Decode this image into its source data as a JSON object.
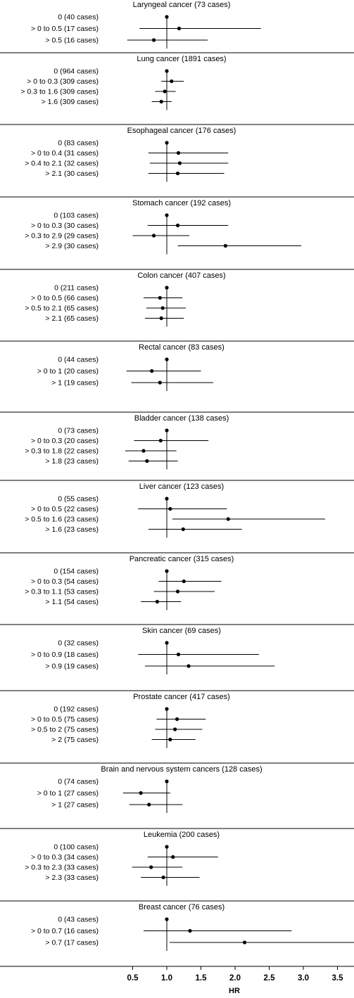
{
  "chart_data": {
    "type": "forest",
    "xlabel": "HR",
    "xlim": [
      0.25,
      3.6
    ],
    "xticks": [
      0.5,
      1.0,
      1.5,
      2.0,
      2.5,
      3.0,
      3.5
    ],
    "xtick_labels": [
      "0.5",
      "1.0",
      "1.5",
      "2.0",
      "2.5",
      "3.0",
      "3.5"
    ],
    "reference_line": 1.0,
    "panels": [
      {
        "title": "Laryngeal cancer (73 cases)",
        "rows": [
          {
            "label": "0 (40 cases)",
            "hr": 1.0,
            "lo": null,
            "hi": null
          },
          {
            "label": "> 0 to 0.5 (17 cases)",
            "hr": 1.18,
            "lo": 0.6,
            "hi": 2.38
          },
          {
            "label": "> 0.5 (16 cases)",
            "hr": 0.81,
            "lo": 0.42,
            "hi": 1.6
          }
        ]
      },
      {
        "title": "Lung cancer (1891 cases)",
        "rows": [
          {
            "label": "0 (964 cases)",
            "hr": 1.0,
            "lo": null,
            "hi": null
          },
          {
            "label": "> 0 to 0.3 (309 cases)",
            "hr": 1.07,
            "lo": 0.92,
            "hi": 1.25
          },
          {
            "label": "> 0.3 to 1.6 (309 cases)",
            "hr": 0.97,
            "lo": 0.83,
            "hi": 1.13
          },
          {
            "label": "> 1.6 (309 cases)",
            "hr": 0.92,
            "lo": 0.78,
            "hi": 1.07
          }
        ]
      },
      {
        "title": "Esophageal cancer (176 cases)",
        "rows": [
          {
            "label": "0 (83 cases)",
            "hr": 1.0,
            "lo": null,
            "hi": null
          },
          {
            "label": "> 0 to 0.4 (31 cases)",
            "hr": 1.17,
            "lo": 0.73,
            "hi": 1.9
          },
          {
            "label": "> 0.4 to 2.1 (32 cases)",
            "hr": 1.19,
            "lo": 0.75,
            "hi": 1.9
          },
          {
            "label": "> 2.1 (30 cases)",
            "hr": 1.16,
            "lo": 0.73,
            "hi": 1.84
          }
        ]
      },
      {
        "title": "Stomach cancer (192 cases)",
        "rows": [
          {
            "label": "0 (103 cases)",
            "hr": 1.0,
            "lo": null,
            "hi": null
          },
          {
            "label": "> 0 to 0.3 (30 cases)",
            "hr": 1.16,
            "lo": 0.72,
            "hi": 1.9
          },
          {
            "label": "> 0.3 to 2.9 (29 cases)",
            "hr": 0.81,
            "lo": 0.5,
            "hi": 1.33
          },
          {
            "label": "> 2.9 (30 cases)",
            "hr": 1.86,
            "lo": 1.16,
            "hi": 2.97
          }
        ]
      },
      {
        "title": "Colon cancer (407 cases)",
        "rows": [
          {
            "label": "0 (211 cases)",
            "hr": 1.0,
            "lo": null,
            "hi": null
          },
          {
            "label": "> 0 to 0.5 (66 cases)",
            "hr": 0.9,
            "lo": 0.66,
            "hi": 1.23
          },
          {
            "label": "> 0.5 to 2.1 (65 cases)",
            "hr": 0.94,
            "lo": 0.7,
            "hi": 1.28
          },
          {
            "label": "> 2.1 (65 cases)",
            "hr": 0.92,
            "lo": 0.68,
            "hi": 1.25
          }
        ]
      },
      {
        "title": "Rectal cancer (83 cases)",
        "rows": [
          {
            "label": "0 (44 cases)",
            "hr": 1.0,
            "lo": null,
            "hi": null
          },
          {
            "label": "> 0 to 1 (20 cases)",
            "hr": 0.78,
            "lo": 0.41,
            "hi": 1.5
          },
          {
            "label": "> 1 (19 cases)",
            "hr": 0.9,
            "lo": 0.48,
            "hi": 1.68
          }
        ]
      },
      {
        "title": "Bladder cancer (138 cases)",
        "rows": [
          {
            "label": "0 (73 cases)",
            "hr": 1.0,
            "lo": null,
            "hi": null
          },
          {
            "label": "> 0 to 0.3 (20 cases)",
            "hr": 0.91,
            "lo": 0.52,
            "hi": 1.61
          },
          {
            "label": "> 0.3 to 1.8 (22 cases)",
            "hr": 0.66,
            "lo": 0.39,
            "hi": 1.14
          },
          {
            "label": "> 1.8 (23 cases)",
            "hr": 0.71,
            "lo": 0.44,
            "hi": 1.16
          }
        ]
      },
      {
        "title": "Liver cancer (123 cases)",
        "rows": [
          {
            "label": "0 (55 cases)",
            "hr": 1.0,
            "lo": null,
            "hi": null
          },
          {
            "label": "> 0 to 0.5 (22 cases)",
            "hr": 1.05,
            "lo": 0.58,
            "hi": 1.88
          },
          {
            "label": "> 0.5 to 1.6 (23 cases)",
            "hr": 1.9,
            "lo": 1.08,
            "hi": 3.32
          },
          {
            "label": "> 1.6 (23 cases)",
            "hr": 1.24,
            "lo": 0.73,
            "hi": 2.1
          }
        ]
      },
      {
        "title": "Pancreatic cancer (315 cases)",
        "rows": [
          {
            "label": "0 (154 cases)",
            "hr": 1.0,
            "lo": null,
            "hi": null
          },
          {
            "label": "> 0 to 0.3 (54 cases)",
            "hr": 1.25,
            "lo": 0.88,
            "hi": 1.8
          },
          {
            "label": "> 0.3 to 1.1 (53 cases)",
            "hr": 1.16,
            "lo": 0.81,
            "hi": 1.7
          },
          {
            "label": "> 1.1 (54 cases)",
            "hr": 0.86,
            "lo": 0.62,
            "hi": 1.21
          }
        ]
      },
      {
        "title": "Skin cancer (69 cases)",
        "rows": [
          {
            "label": "0 (32 cases)",
            "hr": 1.0,
            "lo": null,
            "hi": null
          },
          {
            "label": "> 0 to 0.9 (18 cases)",
            "hr": 1.17,
            "lo": 0.58,
            "hi": 2.35
          },
          {
            "label": "> 0.9 (19 cases)",
            "hr": 1.32,
            "lo": 0.68,
            "hi": 2.58
          }
        ]
      },
      {
        "title": "Prostate cancer (417 cases)",
        "rows": [
          {
            "label": "0 (192 cases)",
            "hr": 1.0,
            "lo": null,
            "hi": null
          },
          {
            "label": "> 0 to 0.5 (75 cases)",
            "hr": 1.15,
            "lo": 0.85,
            "hi": 1.57
          },
          {
            "label": "> 0.5 to 2 (75 cases)",
            "hr": 1.12,
            "lo": 0.83,
            "hi": 1.52
          },
          {
            "label": "> 2 (75 cases)",
            "hr": 1.05,
            "lo": 0.78,
            "hi": 1.42
          }
        ]
      },
      {
        "title": "Brain and nervous system cancers (128 cases)",
        "rows": [
          {
            "label": "0 (74 cases)",
            "hr": 1.0,
            "lo": null,
            "hi": null
          },
          {
            "label": "> 0 to 1 (27 cases)",
            "hr": 0.62,
            "lo": 0.36,
            "hi": 1.05
          },
          {
            "label": "> 1 (27 cases)",
            "hr": 0.74,
            "lo": 0.45,
            "hi": 1.23
          }
        ]
      },
      {
        "title": "Leukemia (200 cases)",
        "rows": [
          {
            "label": "0 (100 cases)",
            "hr": 1.0,
            "lo": null,
            "hi": null
          },
          {
            "label": "> 0 to 0.3 (34 cases)",
            "hr": 1.09,
            "lo": 0.72,
            "hi": 1.75
          },
          {
            "label": "> 0.3 to 2.3 (33 cases)",
            "hr": 0.77,
            "lo": 0.49,
            "hi": 1.23
          },
          {
            "label": "> 2.3 (33 cases)",
            "hr": 0.95,
            "lo": 0.62,
            "hi": 1.48
          }
        ]
      },
      {
        "title": "Breast cancer (76 cases)",
        "rows": [
          {
            "label": "0 (43 cases)",
            "hr": 1.0,
            "lo": null,
            "hi": null
          },
          {
            "label": "> 0 to 0.7 (16 cases)",
            "hr": 1.34,
            "lo": 0.66,
            "hi": 2.83
          },
          {
            "label": "> 0.7 (17 cases)",
            "hr": 2.14,
            "lo": 1.04,
            "hi": 4.4
          }
        ]
      }
    ]
  }
}
